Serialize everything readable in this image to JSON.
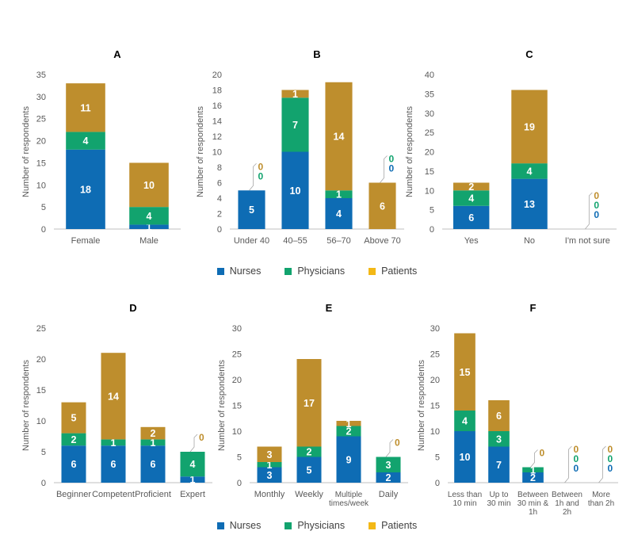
{
  "colors": {
    "nurses": "#0E6CB4",
    "physicians": "#12A36E",
    "patients": "#BE8E2D",
    "legend_patients": "#F3B816",
    "axis": "#BFBFBF",
    "text": "#595959",
    "title": "#000000"
  },
  "legend": {
    "nurses": "Nurses",
    "physicians": "Physicians",
    "patients": "Patients"
  },
  "chart_data": [
    {
      "panel": "A",
      "type": "bar",
      "stacked": true,
      "title": "A",
      "ylabel": "Number of respondents",
      "ylim": [
        0,
        35
      ],
      "ystep": 5,
      "categories": [
        "Female",
        "Male"
      ],
      "series": [
        {
          "name": "Nurses",
          "values": [
            18,
            1
          ]
        },
        {
          "name": "Physicians",
          "values": [
            4,
            4
          ]
        },
        {
          "name": "Patients",
          "values": [
            11,
            10
          ]
        }
      ]
    },
    {
      "panel": "B",
      "type": "bar",
      "stacked": true,
      "title": "B",
      "ylabel": "Number of respondents",
      "ylim": [
        0,
        20
      ],
      "ystep": 2,
      "categories": [
        "Under 40",
        "40–55",
        "56–70",
        "Above 70"
      ],
      "series": [
        {
          "name": "Nurses",
          "values": [
            5,
            10,
            4,
            0
          ]
        },
        {
          "name": "Physicians",
          "values": [
            0,
            7,
            1,
            0
          ]
        },
        {
          "name": "Patients",
          "values": [
            0,
            1,
            14,
            6
          ]
        }
      ]
    },
    {
      "panel": "C",
      "type": "bar",
      "stacked": true,
      "title": "C",
      "ylabel": "Number of respondents",
      "ylim": [
        0,
        40
      ],
      "ystep": 5,
      "categories": [
        "Yes",
        "No",
        "I'm not sure"
      ],
      "series": [
        {
          "name": "Nurses",
          "values": [
            6,
            13,
            0
          ]
        },
        {
          "name": "Physicians",
          "values": [
            4,
            4,
            0
          ]
        },
        {
          "name": "Patients",
          "values": [
            2,
            19,
            0
          ]
        }
      ]
    },
    {
      "panel": "D",
      "type": "bar",
      "stacked": true,
      "title": "D",
      "ylabel": "Number of respondents",
      "ylim": [
        0,
        25
      ],
      "ystep": 5,
      "categories": [
        "Beginner",
        "Competent",
        "Proficient",
        "Expert"
      ],
      "series": [
        {
          "name": "Nurses",
          "values": [
            6,
            6,
            6,
            1
          ]
        },
        {
          "name": "Physicians",
          "values": [
            2,
            1,
            1,
            4
          ]
        },
        {
          "name": "Patients",
          "values": [
            5,
            14,
            2,
            0
          ]
        }
      ]
    },
    {
      "panel": "E",
      "type": "bar",
      "stacked": true,
      "title": "E",
      "ylabel": "Number of respondents",
      "ylim": [
        0,
        30
      ],
      "ystep": 5,
      "categories": [
        "Monthly",
        "Weekly",
        "Multiple\ntimes/week",
        "Daily"
      ],
      "series": [
        {
          "name": "Nurses",
          "values": [
            3,
            5,
            9,
            2
          ]
        },
        {
          "name": "Physicians",
          "values": [
            1,
            2,
            2,
            3
          ]
        },
        {
          "name": "Patients",
          "values": [
            3,
            17,
            1,
            0
          ]
        }
      ]
    },
    {
      "panel": "F",
      "type": "bar",
      "stacked": true,
      "title": "F",
      "ylabel": "Number of respondents",
      "ylim": [
        0,
        30
      ],
      "ystep": 5,
      "categories": [
        "Less than\n10 min",
        "Up to\n30 min",
        "Between\n30 min &\n1h",
        "Between\n1h and\n2h",
        "More\nthan 2h"
      ],
      "series": [
        {
          "name": "Nurses",
          "values": [
            10,
            7,
            2,
            0,
            0
          ]
        },
        {
          "name": "Physicians",
          "values": [
            4,
            3,
            1,
            0,
            0
          ]
        },
        {
          "name": "Patients",
          "values": [
            15,
            6,
            0,
            0,
            0
          ]
        }
      ]
    }
  ]
}
